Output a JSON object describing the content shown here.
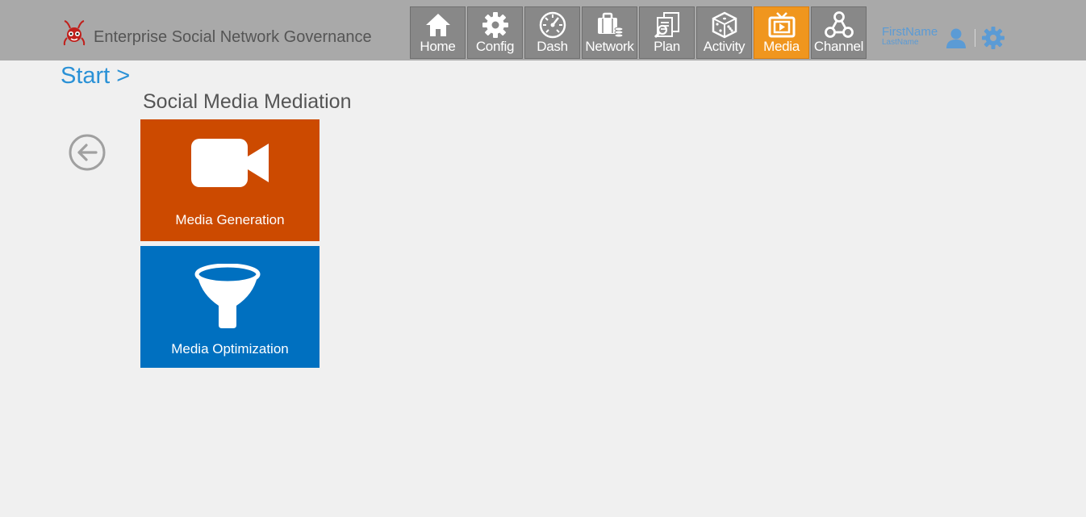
{
  "header": {
    "title": "Enterprise Social Network Governance",
    "logo_icon": "ant-mascot-icon"
  },
  "nav": {
    "active": "Media",
    "items": [
      {
        "label": "Home",
        "icon": "home-icon"
      },
      {
        "label": "Config",
        "icon": "gear-icon"
      },
      {
        "label": "Dash",
        "icon": "dashboard-gauge-icon"
      },
      {
        "label": "Network",
        "icon": "briefcase-coins-icon"
      },
      {
        "label": "Plan",
        "icon": "documents-search-icon"
      },
      {
        "label": "Activity",
        "icon": "dice-icon"
      },
      {
        "label": "Media",
        "icon": "tv-play-icon"
      },
      {
        "label": "Channel",
        "icon": "network-nodes-icon"
      }
    ]
  },
  "user": {
    "first_name": "FirstName",
    "last_name": "LastName"
  },
  "breadcrumb": {
    "label": "Start >"
  },
  "page": {
    "section_title": "Social Media Mediation"
  },
  "tiles": [
    {
      "label": "Media Generation",
      "icon": "video-camera-icon",
      "color": "#cc4a00"
    },
    {
      "label": "Media Optimization",
      "icon": "funnel-icon",
      "color": "#0070c0"
    }
  ],
  "colors": {
    "topbar": "#a9a9a9",
    "nav_tile": "#888888",
    "nav_active": "#f0961e",
    "accent_blue": "#2a91d6",
    "user_blue": "#5b9bd5",
    "background": "#f0f0f0"
  }
}
